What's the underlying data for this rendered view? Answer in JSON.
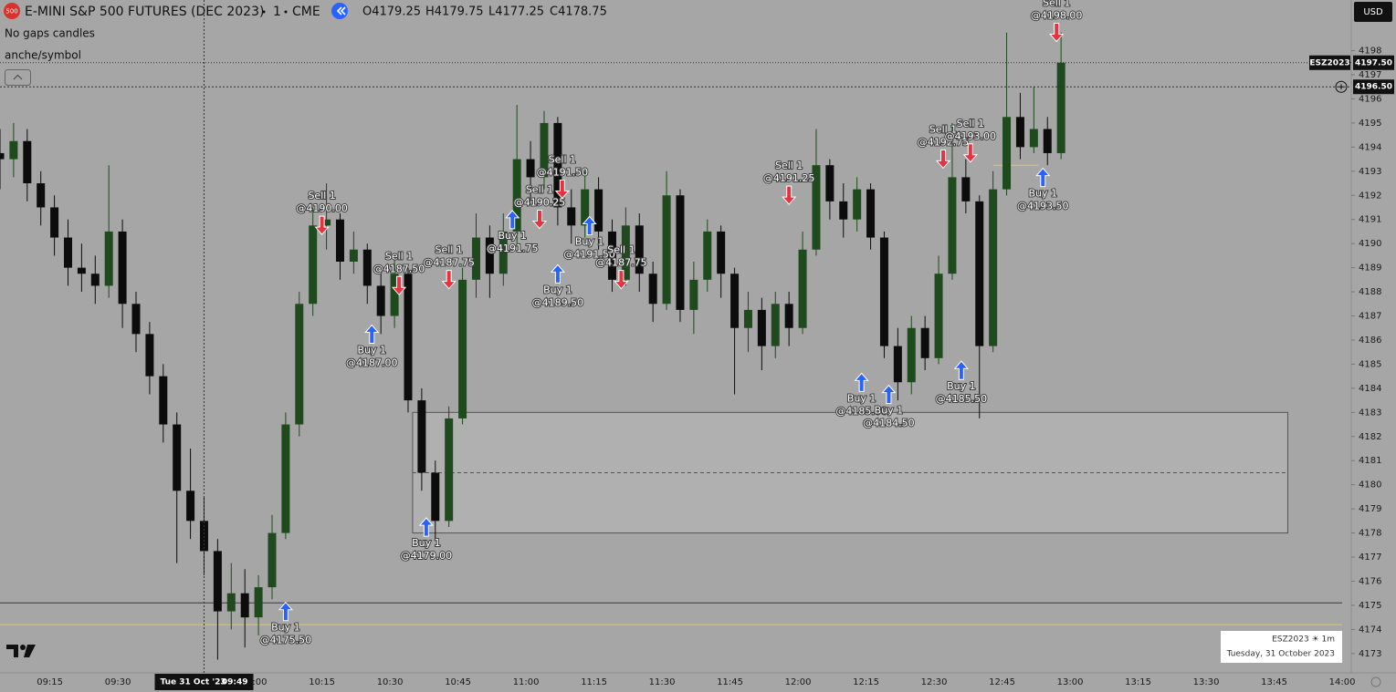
{
  "header": {
    "symbol_badge": "500",
    "title": "E-MINI S&P 500 FUTURES (DEC 2023)",
    "interval": "1",
    "exchange": "CME",
    "ohlc": [
      "O4179.25",
      "H4179.75",
      "L4177.25",
      "C4178.75"
    ]
  },
  "indicators": [
    "No gaps candles",
    "anche/symbol"
  ],
  "currency": "USD",
  "chart_data": {
    "type": "candlestick",
    "x": [
      "09:04",
      "09:07",
      "09:10",
      "09:13",
      "09:16",
      "09:19",
      "09:22",
      "09:25",
      "09:28",
      "09:31",
      "09:34",
      "09:37",
      "09:40",
      "09:43",
      "09:46",
      "09:49",
      "09:52",
      "09:55",
      "09:58",
      "10:01",
      "10:04",
      "10:07",
      "10:10",
      "10:13",
      "10:16",
      "10:19",
      "10:22",
      "10:25",
      "10:28",
      "10:31",
      "10:34",
      "10:37",
      "10:40",
      "10:43",
      "10:46",
      "10:49",
      "10:52",
      "10:55",
      "10:58",
      "11:01",
      "11:04",
      "11:07",
      "11:10",
      "11:13",
      "11:16",
      "11:19",
      "11:22",
      "11:25",
      "11:28",
      "11:31",
      "11:34",
      "11:37",
      "11:40",
      "11:43",
      "11:46",
      "11:49",
      "11:52",
      "11:55",
      "11:58",
      "12:01",
      "12:04",
      "12:07",
      "12:10",
      "12:13",
      "12:16",
      "12:19",
      "12:22",
      "12:25",
      "12:28",
      "12:31",
      "12:34",
      "12:37",
      "12:40",
      "12:43",
      "12:46",
      "12:49",
      "12:52",
      "12:55",
      "12:58"
    ],
    "open": [
      4193.75,
      4193.5,
      4194.25,
      4192.5,
      4191.5,
      4190.25,
      4189,
      4188.75,
      4188.25,
      4190.5,
      4187.5,
      4186.25,
      4184.5,
      4182.5,
      4179.75,
      4178.5,
      4177.25,
      4174.75,
      4175.5,
      4174.5,
      4175.75,
      4178,
      4182.5,
      4187.5,
      4190.75,
      4191,
      4189.25,
      4189.75,
      4188.25,
      4187,
      4188.75,
      4183.5,
      4180.5,
      4178.5,
      4182.75,
      4188.5,
      4190.25,
      4188.75,
      4190.5,
      4193.5,
      4192.75,
      4195,
      4191.5,
      4190.75,
      4192.25,
      4190.5,
      4188.5,
      4190.75,
      4188.75,
      4187.5,
      4192,
      4187.25,
      4188.5,
      4190.5,
      4188.75,
      4186.5,
      4187.25,
      4185.75,
      4187.5,
      4186.5,
      4189.75,
      4193.25,
      4191.75,
      4191,
      4192.25,
      4190.25,
      4185.75,
      4184.25,
      4186.5,
      4185.25,
      4188.75,
      4192.75,
      4191.75,
      4185.75,
      4192.25,
      4195.25,
      4194,
      4194.75,
      4193.75
    ],
    "high": [
      4194.75,
      4195,
      4194.75,
      4193,
      4192,
      4191,
      4190,
      4189.5,
      4193.25,
      4191,
      4188,
      4186.75,
      4185,
      4183,
      4181.5,
      4179.5,
      4177.75,
      4176.75,
      4176.5,
      4176.25,
      4178.75,
      4183,
      4188,
      4191.5,
      4192.5,
      4191.25,
      4190.5,
      4190,
      4188.75,
      4189.5,
      4189,
      4184,
      4181,
      4183.25,
      4189,
      4191.25,
      4190.75,
      4191.25,
      4195.75,
      4194.25,
      4195.5,
      4195.25,
      4192.25,
      4193,
      4192.75,
      4191,
      4191.5,
      4191.25,
      4189.25,
      4193,
      4192.25,
      4189.25,
      4191,
      4190.75,
      4189,
      4188,
      4187.75,
      4188,
      4188,
      4190.5,
      4194.75,
      4193.5,
      4192.5,
      4192.75,
      4192.5,
      4190.5,
      4186.5,
      4187,
      4187,
      4189.5,
      4195,
      4193.5,
      4192,
      4193,
      4198.75,
      4196.25,
      4196.5,
      4195.25,
      4198.75
    ],
    "low": [
      4192.25,
      4192.75,
      4191.75,
      4190.75,
      4189.5,
      4188.25,
      4188,
      4187.5,
      4187.75,
      4186.5,
      4185.5,
      4183.75,
      4181.75,
      4176.75,
      4177.75,
      4176.25,
      4172.75,
      4174,
      4173.25,
      4173.75,
      4175.25,
      4177.75,
      4182,
      4187,
      4189.75,
      4188.5,
      4188.75,
      4187.5,
      4186.25,
      4186.5,
      4183,
      4179.75,
      4177.75,
      4178.25,
      4182.5,
      4187.75,
      4187.75,
      4188.25,
      4190,
      4191.75,
      4192.25,
      4190.75,
      4190,
      4190.25,
      4189.75,
      4188,
      4188.25,
      4188,
      4186.75,
      4187.25,
      4186.75,
      4186.25,
      4188,
      4187.75,
      4183.75,
      4185.5,
      4184.75,
      4185.25,
      4185.75,
      4186.25,
      4189.5,
      4191,
      4190.25,
      4190.5,
      4189.75,
      4185.25,
      4183.5,
      4183.75,
      4184.75,
      4185,
      4188.5,
      4191.25,
      4182.75,
      4185.5,
      4192,
      4193.5,
      4193.75,
      4193.25,
      4193.5
    ],
    "close": [
      4193.5,
      4194.25,
      4192.5,
      4191.5,
      4190.25,
      4189,
      4188.75,
      4188.25,
      4190.5,
      4187.5,
      4186.25,
      4184.5,
      4182.5,
      4179.75,
      4178.5,
      4177.25,
      4174.75,
      4175.5,
      4174.5,
      4175.75,
      4178,
      4182.5,
      4187.5,
      4190.75,
      4191,
      4189.25,
      4189.75,
      4188.25,
      4187,
      4188.75,
      4183.5,
      4180.5,
      4178.5,
      4182.75,
      4188.5,
      4190.25,
      4188.75,
      4190.5,
      4193.5,
      4192.75,
      4195,
      4191.5,
      4190.75,
      4192.25,
      4190.5,
      4188.5,
      4190.75,
      4188.75,
      4187.5,
      4192,
      4187.25,
      4188.5,
      4190.5,
      4188.75,
      4186.5,
      4187.25,
      4185.75,
      4187.5,
      4186.5,
      4189.75,
      4193.25,
      4191.75,
      4191,
      4192.25,
      4190.25,
      4185.75,
      4184.25,
      4186.5,
      4185.25,
      4188.75,
      4192.75,
      4191.75,
      4185.75,
      4192.25,
      4195.25,
      4194,
      4194.75,
      4193.75,
      4197.5
    ],
    "up_color": "#1e4a1e",
    "down_color": "#0c0c0c",
    "xlim": [
      "09:04",
      "14:02"
    ],
    "xticks": [
      "09:15",
      "09:30",
      "09:45",
      "10:00",
      "10:15",
      "10:30",
      "10:45",
      "11:00",
      "11:15",
      "11:30",
      "11:45",
      "12:00",
      "12:15",
      "12:30",
      "12:45",
      "13:00",
      "13:15",
      "13:30",
      "13:45",
      "14:00"
    ],
    "ylim": [
      4172.2,
      4200.1
    ],
    "yticks": [
      4173,
      4174,
      4175,
      4176,
      4177,
      4178,
      4179,
      4180,
      4181,
      4182,
      4183,
      4184,
      4185,
      4186,
      4187,
      4188,
      4189,
      4190,
      4191,
      4192,
      4193,
      4194,
      4195,
      4196,
      4197,
      4198
    ]
  },
  "trades": {
    "buy_color": "#2962ff",
    "sell_color": "#e8323f",
    "items": [
      {
        "x": "10:07",
        "side": "buy",
        "text": "Buy 1",
        "price": 4175.5,
        "price_label": "@4175.50"
      },
      {
        "x": "10:15",
        "side": "sell",
        "text": "Sell 1",
        "price": 4190,
        "price_label": "@4190.00"
      },
      {
        "x": "10:26",
        "side": "buy",
        "text": "Buy 1",
        "price": 4187,
        "price_label": "@4187.00"
      },
      {
        "x": "10:32",
        "side": "sell",
        "text": "Sell 1",
        "price": 4187.5,
        "price_label": "@4187.50"
      },
      {
        "x": "10:38",
        "side": "buy",
        "text": "Buy 1",
        "price": 4179,
        "price_label": "@4179.00"
      },
      {
        "x": "10:43",
        "side": "sell",
        "text": "Sell 1",
        "price": 4187.75,
        "price_label": "@4187.75"
      },
      {
        "x": "10:57",
        "side": "buy",
        "text": "Buy 1",
        "price": 4191.75,
        "price_label": "@4191.75"
      },
      {
        "x": "11:03",
        "side": "sell",
        "text": "Sell 1",
        "price": 4190.25,
        "price_label": "@4190.25"
      },
      {
        "x": "11:07",
        "side": "buy",
        "text": "Buy 1",
        "price": 4189.5,
        "price_label": "@4189.50"
      },
      {
        "x": "11:08",
        "side": "sell",
        "text": "Sell 1",
        "price": 4191.5,
        "price_label": "@4191.50"
      },
      {
        "x": "11:14",
        "side": "buy",
        "text": "Buy 1",
        "price": 4191.5,
        "price_label": "@4191.50"
      },
      {
        "x": "11:21",
        "side": "sell",
        "text": "Sell 1",
        "price": 4187.75,
        "price_label": "@4187.75"
      },
      {
        "x": "11:58",
        "side": "sell",
        "text": "Sell 1",
        "price": 4191.25,
        "price_label": "@4191.25"
      },
      {
        "x": "12:14",
        "side": "buy",
        "text": "Buy 1",
        "price": 4185,
        "price_label": "@4185.00"
      },
      {
        "x": "12:20",
        "side": "buy",
        "text": "Buy 1",
        "price": 4184.5,
        "price_label": "@4184.50"
      },
      {
        "x": "12:32",
        "side": "sell",
        "text": "Sell 1",
        "price": 4192.75,
        "price_label": "@4192.75"
      },
      {
        "x": "12:36",
        "side": "buy",
        "text": "Buy 1",
        "price": 4185.5,
        "price_label": "@4185.50"
      },
      {
        "x": "12:38",
        "side": "sell",
        "text": "Sell 1",
        "price": 4193,
        "price_label": "@4193.00"
      },
      {
        "x": "12:54",
        "side": "buy",
        "text": "Buy 1",
        "price": 4193.5,
        "price_label": "@4193.50"
      },
      {
        "x": "12:57",
        "side": "sell",
        "text": "Sell 1",
        "price": 4198,
        "price_label": "@4198.00"
      }
    ]
  },
  "last_price": {
    "symbol": "ESZ2023",
    "value": 4197.5,
    "label": "4197.50"
  },
  "crosshair": {
    "x": "09:49",
    "date_label": "Tue 31 Oct '23",
    "price": 4196.5,
    "price_label": "4196.50"
  },
  "zone": {
    "x0": "10:35",
    "x1": "13:48",
    "top": 4183,
    "bottom": 4178
  },
  "hlines": [
    {
      "price": 4175.1,
      "color": "#3a3a3a"
    },
    {
      "price": 4174.2,
      "color": "#e6c84a"
    }
  ],
  "segment": {
    "x0": "12:43",
    "x1": "12:53",
    "price": 4193.25,
    "color": "#e6c84a"
  },
  "footer_box": {
    "line1": "ESZ2023 ☀ 1m",
    "line2": "Tuesday, 31 October 2023"
  }
}
